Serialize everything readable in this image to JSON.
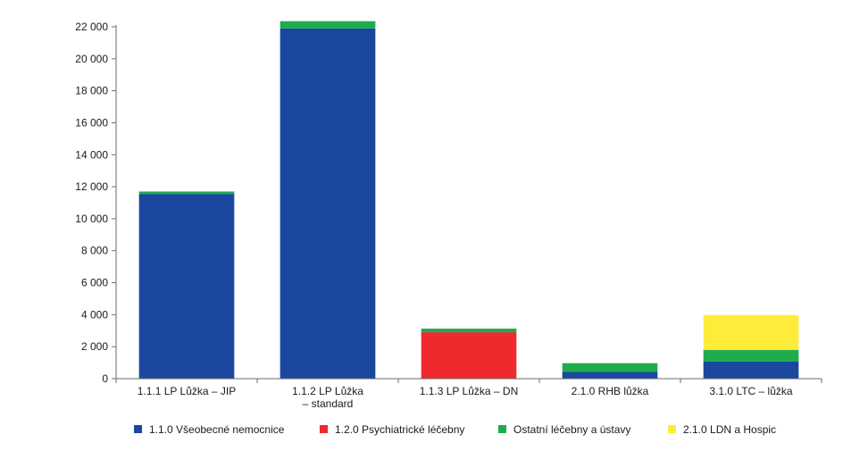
{
  "chart_data": {
    "type": "bar",
    "stacked": true,
    "categories": [
      [
        "1.1.1 LP Lůžka – JIP"
      ],
      [
        "1.1.2 LP Lůžka",
        "– standard"
      ],
      [
        "1.1.3 LP Lůžka – DN"
      ],
      [
        "2.1.0 RHB lůžka"
      ],
      [
        "3.1.0 LTC – lůžka"
      ]
    ],
    "series": [
      {
        "name": "1.1.0 Všeobecné nemocnice",
        "color": "#1a47a0",
        "values": [
          11550,
          21900,
          0,
          420,
          1080
        ]
      },
      {
        "name": "1.2.0 Psychiatrické léčebny",
        "color": "#ee2a2e",
        "values": [
          0,
          0,
          2900,
          0,
          0
        ]
      },
      {
        "name": "Ostatní léčebny a ústavy",
        "color": "#1fac4c",
        "values": [
          150,
          450,
          230,
          550,
          720
        ]
      },
      {
        "name": "2.1.0 LDN a Hospic",
        "color": "#ffec3a",
        "values": [
          0,
          0,
          0,
          0,
          2180
        ]
      }
    ],
    "ylim": [
      0,
      22000
    ],
    "yticks": [
      0,
      2000,
      4000,
      6000,
      8000,
      10000,
      12000,
      14000,
      16000,
      18000,
      20000,
      22000
    ],
    "ytick_labels": [
      "0",
      "2 000",
      "4 000",
      "6 000",
      "8 000",
      "10 000",
      "12 000",
      "14 000",
      "16 000",
      "18 000",
      "20 000",
      "22 000"
    ],
    "grid": false,
    "legend": "bottom"
  }
}
